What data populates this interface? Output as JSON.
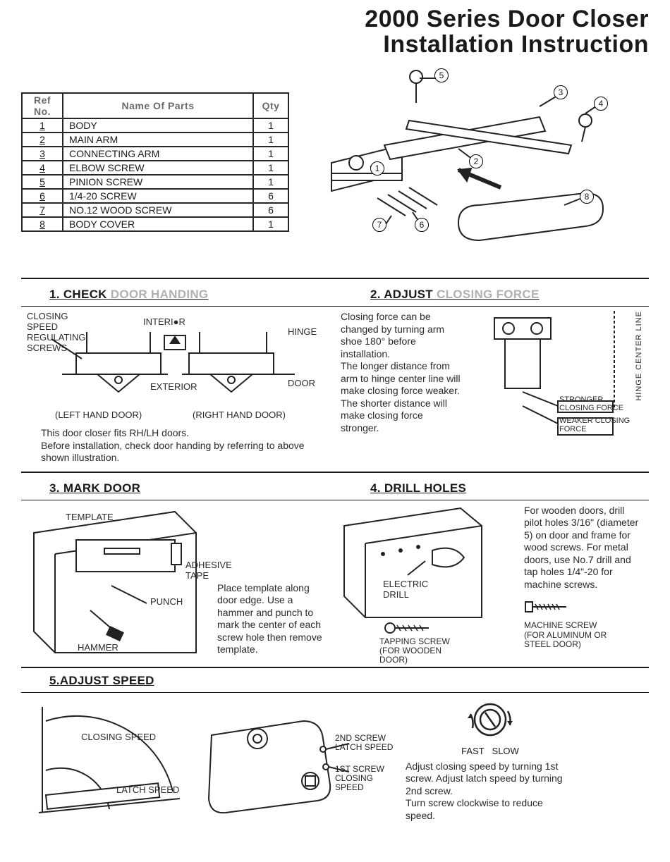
{
  "title_line1": "2000 Series Door Closer",
  "title_line2": "Installation Instruction",
  "parts_table": {
    "columns": [
      "Ref No.",
      "Name Of Parts",
      "Qty"
    ],
    "rows": [
      [
        "1",
        "BODY",
        "1"
      ],
      [
        "2",
        "MAIN ARM",
        "1"
      ],
      [
        "3",
        "CONNECTING ARM",
        "1"
      ],
      [
        "4",
        "ELBOW SCREW",
        "1"
      ],
      [
        "5",
        "PINION SCREW",
        "1"
      ],
      [
        "6",
        "1/4-20 SCREW",
        "6"
      ],
      [
        "7",
        "NO.12 WOOD SCREW",
        "6"
      ],
      [
        "8",
        "BODY COVER",
        "1"
      ]
    ]
  },
  "exploded_callouts": [
    "1",
    "2",
    "3",
    "4",
    "5",
    "6",
    "7",
    "8"
  ],
  "sections": {
    "s1": {
      "num": "1.",
      "name": "CHECK",
      "ghost": "DOOR HANDING"
    },
    "s2": {
      "num": "2.",
      "name": "ADJUST",
      "ghost": "CLOSING FORCE"
    },
    "s3": {
      "num": "3.",
      "name": "MARK DOOR"
    },
    "s4": {
      "num": "4.",
      "name": "DRILL HOLES"
    },
    "s5": {
      "num": "5.",
      "name": "ADJUST SPEED",
      "lead": "5."
    }
  },
  "s1_labels": {
    "closing_speed": "CLOSING SPEED\nREGULATING\nSCREWS",
    "interior": "INTERI●R",
    "hinge": "HINGE",
    "exterior": "EXTERIOR",
    "door": "DOOR",
    "left": "(LEFT HAND DOOR)",
    "right": "(RIGHT HAND DOOR)",
    "note": "This door closer fits RH/LH doors.\nBefore installation, check door handing by referring to above shown illustration."
  },
  "s2": {
    "note": "Closing force can be changed by turning arm shoe 180° before installation.\nThe longer distance from arm to hinge center line will make closing force weaker. The shorter distance will make closing force stronger.",
    "stronger": "STRONGER\nCLOSING FORCE",
    "weaker": "WEAKER CLOSING\nFORCE",
    "hcl": "HINGE CENTER LINE"
  },
  "s3": {
    "template": "TEMPLATE",
    "tape": "ADHESIVE TAPE",
    "punch": "PUNCH",
    "hammer": "HAMMER",
    "note": "Place template along door edge. Use a hammer and punch to mark the center of each screw hole then remove template."
  },
  "s4": {
    "drill": "ELECTRIC\nDRILL",
    "tap": "TAPPING SCREW\n(FOR WOODEN\nDOOR)",
    "mach": "MACHINE SCREW\n(FOR ALUMINUM OR\nSTEEL DOOR)",
    "note": "For wooden doors, drill pilot holes 3/16\" (diameter 5) on door and frame for wood screws. For metal doors, use No.7 drill and tap holes 1/4\"-20 for machine screws."
  },
  "s5": {
    "closing": "CLOSING SPEED",
    "latch": "LATCH SPEED",
    "scr2": "2ND SCREW\nLATCH SPEED",
    "scr1": "1ST SCREW\nCLOSING SPEED",
    "fast": "FAST",
    "slow": "SLOW",
    "note": "Adjust closing speed by turning 1st screw. Adjust latch speed by turning 2nd screw.\nTurn screw clockwise to reduce speed."
  },
  "colors": {
    "ink": "#1a1a1a",
    "ghost": "#b0b0b0",
    "bg": "#ffffff"
  }
}
